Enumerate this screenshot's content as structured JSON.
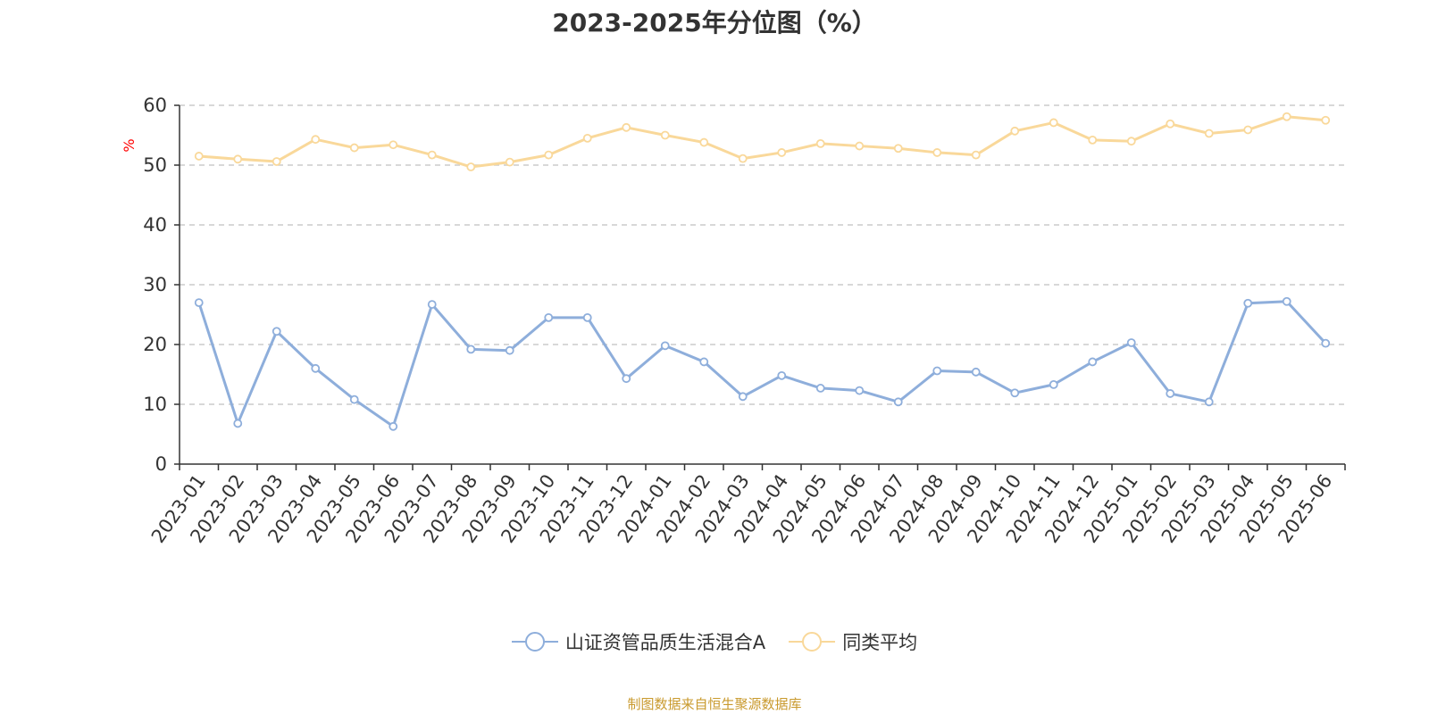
{
  "chart_data": {
    "type": "line",
    "title": "2023-2025年分位图（%）",
    "ylabel": "%",
    "xlabel": "",
    "ylim": [
      0,
      60
    ],
    "yticks": [
      0,
      10,
      20,
      30,
      40,
      50,
      60
    ],
    "grid": true,
    "legend_position": "bottom",
    "categories": [
      "2023-01",
      "2023-02",
      "2023-03",
      "2023-04",
      "2023-05",
      "2023-06",
      "2023-07",
      "2023-08",
      "2023-09",
      "2023-10",
      "2023-11",
      "2023-12",
      "2024-01",
      "2024-02",
      "2024-03",
      "2024-04",
      "2024-05",
      "2024-06",
      "2024-07",
      "2024-08",
      "2024-09",
      "2024-10",
      "2024-11",
      "2024-12",
      "2025-01",
      "2025-02",
      "2025-03",
      "2025-04",
      "2025-05",
      "2025-06"
    ],
    "series": [
      {
        "name": "山证资管品质生活混合A",
        "color": "#8eaedb",
        "values": [
          27.0,
          6.8,
          22.2,
          16.0,
          10.8,
          6.3,
          26.7,
          19.2,
          19.0,
          24.5,
          24.5,
          14.3,
          19.8,
          17.1,
          11.3,
          14.8,
          12.7,
          12.3,
          10.4,
          15.6,
          15.4,
          11.9,
          13.3,
          17.1,
          20.3,
          11.8,
          10.4,
          26.9,
          27.2,
          20.2
        ]
      },
      {
        "name": "同类平均",
        "color": "#f9d89a",
        "values": [
          51.5,
          51.0,
          50.6,
          54.3,
          52.9,
          53.4,
          51.7,
          49.7,
          50.5,
          51.7,
          54.5,
          56.3,
          55.0,
          53.8,
          51.1,
          52.1,
          53.6,
          53.2,
          52.8,
          52.1,
          51.7,
          55.7,
          57.1,
          54.2,
          54.0,
          56.9,
          55.3,
          55.9,
          58.1,
          57.5
        ]
      }
    ]
  },
  "colors": {
    "ylabel": "#ff0000",
    "axis": "#333333",
    "grid": "#cccccc",
    "source": "#c99a2e"
  },
  "source_note": "制图数据来自恒生聚源数据库"
}
